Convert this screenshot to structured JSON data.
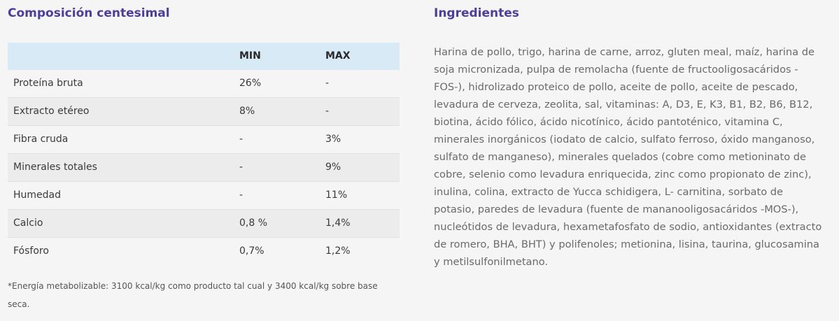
{
  "composition": {
    "title": "Composición centesimal",
    "headers": {
      "name": "",
      "min": "MIN",
      "max": "MAX"
    },
    "rows": [
      {
        "name": "Proteína bruta",
        "min": "26%",
        "max": "-"
      },
      {
        "name": "Extracto etéreo",
        "min": "8%",
        "max": "-"
      },
      {
        "name": "Fibra cruda",
        "min": "-",
        "max": "3%"
      },
      {
        "name": "Minerales totales",
        "min": "-",
        "max": "9%"
      },
      {
        "name": "Humedad",
        "min": "-",
        "max": "11%"
      },
      {
        "name": "Calcio",
        "min": "0,8 %",
        "max": "1,4%"
      },
      {
        "name": "Fósforo",
        "min": "0,7%",
        "max": "1,2%"
      }
    ],
    "footnote": "*Energía metabolizable: 3100 kcal/kg como producto tal cual y 3400 kcal/kg sobre base seca."
  },
  "ingredients": {
    "title": "Ingredientes",
    "text": "Harina de pollo, trigo, harina de carne, arroz, gluten meal, maíz, harina de soja micronizada, pulpa de remolacha (fuente de fructooligosacáridos -FOS-), hidrolizado proteico de pollo, aceite de pollo, aceite de pescado, levadura de cerveza, zeolita, sal, vitaminas: A, D3, E, K3, B1, B2, B6, B12, biotina, ácido fólico, ácido nicotínico, ácido pantoténico, vitamina C, minerales inorgánicos (iodato de calcio, sulfato ferroso, óxido manganoso, sulfato de manganeso), minerales quelados (cobre como metioninato de cobre, selenio como levadura enriquecida, zinc como propionato de zinc), inulina, colina, extracto de Yucca schidigera, L- carnitina, sorbato de potasio, paredes de levadura (fuente de mananooligosacáridos -MOS-), nucleótidos de levadura, hexametafosfato de sodio, antioxidantes (extracto de romero, BHA, BHT) y polifenoles; metionina, lisina, taurina, glucosamina y metilsulfonilmetano."
  },
  "colors": {
    "title": "#4b3f9a",
    "table_header_bg": "#d8eaf5",
    "row_alt_bg": "#ececec",
    "page_bg": "#f5f5f5"
  }
}
